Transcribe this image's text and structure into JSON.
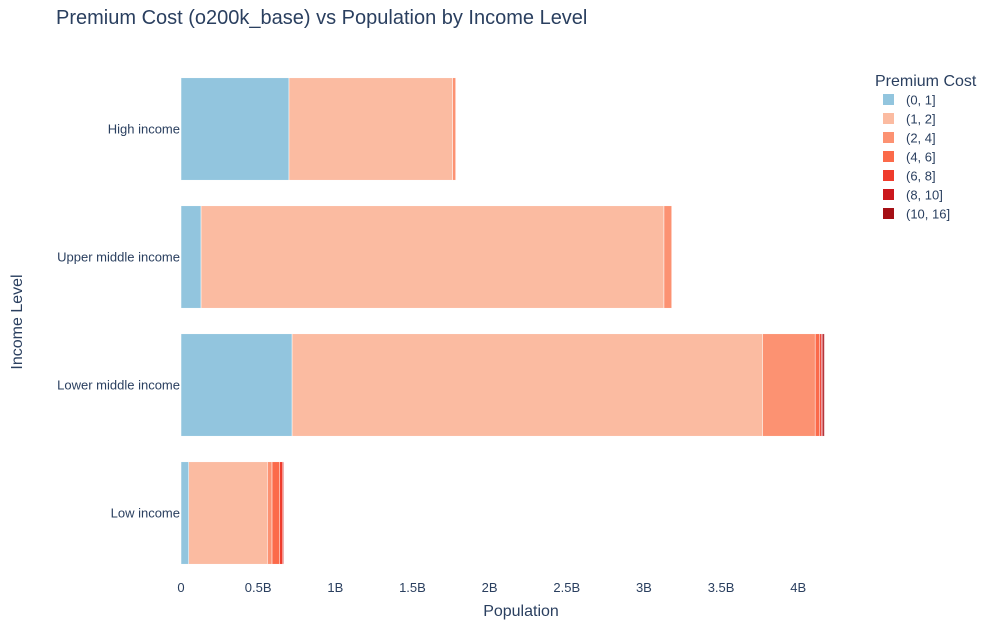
{
  "chart_data": {
    "type": "bar",
    "orientation": "horizontal",
    "barmode": "stack",
    "title": "Premium Cost (o200k_base) vs Population by Income Level",
    "xlabel": "Population",
    "ylabel": "Income Level",
    "xlim": [
      0,
      4.18
    ],
    "x_unit": "billions",
    "x_ticks": [
      {
        "value": 0,
        "label": "0"
      },
      {
        "value": 0.5,
        "label": "0.5B"
      },
      {
        "value": 1,
        "label": "1B"
      },
      {
        "value": 1.5,
        "label": "1.5B"
      },
      {
        "value": 2,
        "label": "2B"
      },
      {
        "value": 2.5,
        "label": "2.5B"
      },
      {
        "value": 3,
        "label": "3B"
      },
      {
        "value": 3.5,
        "label": "3.5B"
      },
      {
        "value": 4,
        "label": "4B"
      }
    ],
    "categories": [
      "Low income",
      "Lower middle income",
      "Upper middle income",
      "High income"
    ],
    "legend_title": "Premium Cost",
    "legend_position": "top-right",
    "grid": false,
    "series": [
      {
        "name": "(0, 1]",
        "color": "#92c5de",
        "values": [
          0.05,
          0.72,
          0.13,
          0.7
        ]
      },
      {
        "name": "(1, 2]",
        "color": "#fbbba1",
        "values": [
          0.51,
          3.05,
          3.0,
          1.06
        ]
      },
      {
        "name": "(2, 4]",
        "color": "#fc9272",
        "values": [
          0.03,
          0.34,
          0.05,
          0.02
        ]
      },
      {
        "name": "(4, 6]",
        "color": "#fb6a4a",
        "values": [
          0.05,
          0.03,
          0.0,
          0.0
        ]
      },
      {
        "name": "(6, 8]",
        "color": "#ef3b2c",
        "values": [
          0.02,
          0.01,
          0.0,
          0.0
        ]
      },
      {
        "name": "(8, 10]",
        "color": "#cb181d",
        "values": [
          0.005,
          0.01,
          0.0,
          0.0
        ]
      },
      {
        "name": "(10, 16]",
        "color": "#a50f15",
        "values": [
          0.0,
          0.01,
          0.0,
          0.0
        ]
      }
    ]
  }
}
